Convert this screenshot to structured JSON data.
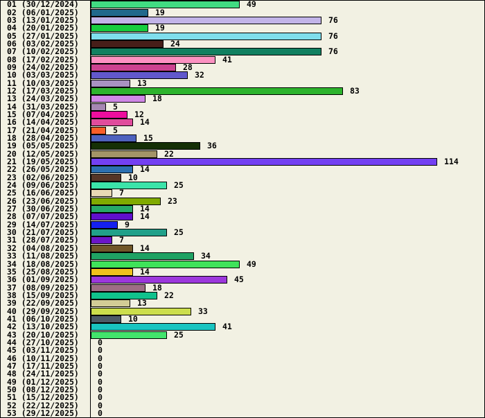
{
  "page": {
    "background": "#F2F1E3",
    "border_color": "#000000"
  },
  "chart_data": {
    "type": "bar",
    "orientation": "horizontal",
    "title": "",
    "xlabel": "",
    "ylabel": "",
    "value_labels_shown": true,
    "axis_color": "#000000",
    "bar_border_color": "#000000",
    "x_range": [
      0,
      114
    ],
    "categories": [
      "01 (30/12/2024)",
      "02 (06/01/2025)",
      "03 (13/01/2025)",
      "04 (20/01/2025)",
      "05 (27/01/2025)",
      "06 (03/02/2025)",
      "07 (10/02/2025)",
      "08 (17/02/2025)",
      "09 (24/02/2025)",
      "10 (03/03/2025)",
      "11 (10/03/2025)",
      "12 (17/03/2025)",
      "13 (24/03/2025)",
      "14 (31/03/2025)",
      "15 (07/04/2025)",
      "16 (14/04/2025)",
      "17 (21/04/2025)",
      "18 (28/04/2025)",
      "19 (05/05/2025)",
      "20 (12/05/2025)",
      "21 (19/05/2025)",
      "22 (26/05/2025)",
      "23 (02/06/2025)",
      "24 (09/06/2025)",
      "25 (16/06/2025)",
      "26 (23/06/2025)",
      "27 (30/06/2025)",
      "28 (07/07/2025)",
      "29 (14/07/2025)",
      "30 (21/07/2025)",
      "31 (28/07/2025)",
      "32 (04/08/2025)",
      "33 (11/08/2025)",
      "34 (18/08/2025)",
      "35 (25/08/2025)",
      "36 (01/09/2025)",
      "37 (08/09/2025)",
      "38 (15/09/2025)",
      "39 (22/09/2025)",
      "40 (29/09/2025)",
      "41 (06/10/2025)",
      "42 (13/10/2025)",
      "43 (20/10/2025)",
      "44 (27/10/2025)",
      "45 (03/11/2025)",
      "46 (10/11/2025)",
      "47 (17/11/2025)",
      "48 (24/11/2025)",
      "49 (01/12/2025)",
      "50 (08/12/2025)",
      "51 (15/12/2025)",
      "52 (22/12/2025)",
      "53 (29/12/2025)"
    ],
    "values": [
      49,
      19,
      76,
      19,
      76,
      24,
      76,
      41,
      28,
      32,
      13,
      83,
      18,
      5,
      12,
      14,
      5,
      15,
      36,
      22,
      114,
      14,
      10,
      25,
      7,
      23,
      14,
      14,
      9,
      25,
      7,
      14,
      34,
      49,
      14,
      45,
      18,
      22,
      13,
      33,
      10,
      41,
      25,
      0,
      0,
      0,
      0,
      0,
      0,
      0,
      0,
      0,
      0
    ],
    "colors": [
      "#41DC82",
      "#20698C",
      "#C2B4E8",
      "#17CE3F",
      "#7FDEEC",
      "#471E19",
      "#118060",
      "#FC92C2",
      "#CC4390",
      "#6158CC",
      "#A892C2",
      "#2DB32D",
      "#D088E6",
      "#A687B2",
      "#EE0E9E",
      "#E04C9C",
      "#F85E28",
      "#4E62BE",
      "#153006",
      "#A39467",
      "#7340F2",
      "#2C70B0",
      "#553527",
      "#3BE4A9",
      "#E8D9B4",
      "#80AA00",
      "#27A868",
      "#6010CC",
      "#1520EE",
      "#21A089",
      "#6B16C8",
      "#705628",
      "#1FA263",
      "#3FE35A",
      "#EFC21C",
      "#9C38DC",
      "#9E6E84",
      "#10C28C",
      "#D2CC96",
      "#CCDE4C",
      "#4C5A66",
      "#19C4C0",
      "#42E46C",
      null,
      null,
      null,
      null,
      null,
      null,
      null,
      null,
      null,
      null
    ]
  }
}
